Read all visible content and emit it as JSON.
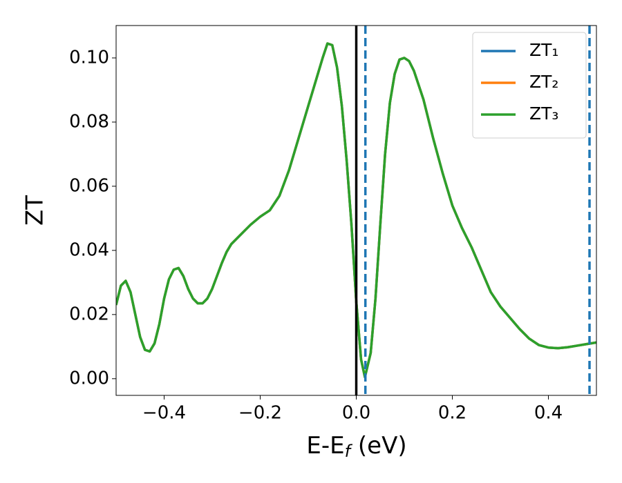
{
  "chart_data": {
    "type": "line",
    "xlabel": [
      "E-E",
      "f",
      " (eV)"
    ],
    "ylabel": "ZT",
    "xlim": [
      -0.5,
      0.5
    ],
    "ylim": [
      -0.0052,
      0.1101
    ],
    "xticks": [
      {
        "value": -0.4,
        "label": "−0.4"
      },
      {
        "value": -0.2,
        "label": "−0.2"
      },
      {
        "value": 0,
        "label": "0.0"
      },
      0.2,
      0.4
    ],
    "yticks": [
      {
        "value": 0,
        "label": "0.00"
      },
      0.02,
      0.04,
      0.06,
      0.08,
      {
        "value": 0.1,
        "label": "0.10"
      }
    ],
    "grid": false,
    "legend": "upper right",
    "x": [
      -0.5,
      -0.49,
      -0.48,
      -0.47,
      -0.46,
      -0.45,
      -0.44,
      -0.43,
      -0.42,
      -0.41,
      -0.4,
      -0.39,
      -0.38,
      -0.37,
      -0.36,
      -0.35,
      -0.34,
      -0.33,
      -0.32,
      -0.31,
      -0.3,
      -0.29,
      -0.28,
      -0.27,
      -0.26,
      -0.25,
      -0.24,
      -0.22,
      -0.2,
      -0.18,
      -0.16,
      -0.14,
      -0.12,
      -0.1,
      -0.08,
      -0.07,
      -0.06,
      -0.05,
      -0.04,
      -0.03,
      -0.02,
      -0.01,
      0,
      0.01,
      0.018,
      0.03,
      0.04,
      0.05,
      0.06,
      0.07,
      0.08,
      0.09,
      0.1,
      0.11,
      0.12,
      0.14,
      0.16,
      0.18,
      0.2,
      0.22,
      0.24,
      0.26,
      0.28,
      0.3,
      0.32,
      0.34,
      0.36,
      0.38,
      0.4,
      0.42,
      0.44,
      0.46,
      0.48,
      0.5
    ],
    "series": [
      {
        "name": "ZT₁",
        "color": "#1f77b4",
        "values": [
          0.023,
          0.029,
          0.0305,
          0.027,
          0.02,
          0.013,
          0.009,
          0.0085,
          0.011,
          0.017,
          0.025,
          0.031,
          0.034,
          0.0345,
          0.032,
          0.028,
          0.025,
          0.0235,
          0.0235,
          0.025,
          0.028,
          0.032,
          0.036,
          0.0395,
          0.042,
          0.0435,
          0.045,
          0.048,
          0.0505,
          0.0525,
          0.057,
          0.065,
          0.075,
          0.085,
          0.095,
          0.1,
          0.1045,
          0.104,
          0.097,
          0.085,
          0.068,
          0.048,
          0.024,
          0.006,
          0.0005,
          0.008,
          0.025,
          0.048,
          0.07,
          0.086,
          0.095,
          0.0995,
          0.1,
          0.099,
          0.096,
          0.087,
          0.075,
          0.064,
          0.054,
          0.047,
          0.041,
          0.034,
          0.027,
          0.0225,
          0.019,
          0.0155,
          0.0125,
          0.0105,
          0.0097,
          0.0095,
          0.0098,
          0.0103,
          0.0108,
          0.0113
        ]
      },
      {
        "name": "ZT₂",
        "color": "#ff7f0e",
        "values": [
          0.023,
          0.029,
          0.0305,
          0.027,
          0.02,
          0.013,
          0.009,
          0.0085,
          0.011,
          0.017,
          0.025,
          0.031,
          0.034,
          0.0345,
          0.032,
          0.028,
          0.025,
          0.0235,
          0.0235,
          0.025,
          0.028,
          0.032,
          0.036,
          0.0395,
          0.042,
          0.0435,
          0.045,
          0.048,
          0.0505,
          0.0525,
          0.057,
          0.065,
          0.075,
          0.085,
          0.095,
          0.1,
          0.1045,
          0.104,
          0.097,
          0.085,
          0.068,
          0.048,
          0.024,
          0.006,
          0.0005,
          0.008,
          0.025,
          0.048,
          0.07,
          0.086,
          0.095,
          0.0995,
          0.1,
          0.099,
          0.096,
          0.087,
          0.075,
          0.064,
          0.054,
          0.047,
          0.041,
          0.034,
          0.027,
          0.0225,
          0.019,
          0.0155,
          0.0125,
          0.0105,
          0.0097,
          0.0095,
          0.0098,
          0.0103,
          0.0108,
          0.0113
        ]
      },
      {
        "name": "ZT₃",
        "color": "#2ca02c",
        "values": [
          0.023,
          0.029,
          0.0305,
          0.027,
          0.02,
          0.013,
          0.009,
          0.0085,
          0.011,
          0.017,
          0.025,
          0.031,
          0.034,
          0.0345,
          0.032,
          0.028,
          0.025,
          0.0235,
          0.0235,
          0.025,
          0.028,
          0.032,
          0.036,
          0.0395,
          0.042,
          0.0435,
          0.045,
          0.048,
          0.0505,
          0.0525,
          0.057,
          0.065,
          0.075,
          0.085,
          0.095,
          0.1,
          0.1045,
          0.104,
          0.097,
          0.085,
          0.068,
          0.048,
          0.024,
          0.006,
          0.0005,
          0.008,
          0.025,
          0.048,
          0.07,
          0.086,
          0.095,
          0.0995,
          0.1,
          0.099,
          0.096,
          0.087,
          0.075,
          0.064,
          0.054,
          0.047,
          0.041,
          0.034,
          0.027,
          0.0225,
          0.019,
          0.0155,
          0.0125,
          0.0105,
          0.0097,
          0.0095,
          0.0098,
          0.0103,
          0.0108,
          0.0113
        ]
      }
    ],
    "vlines": [
      {
        "x": 0,
        "color": "#000000",
        "dashed": false
      },
      {
        "x": 0.019,
        "color": "#1f77b4",
        "dashed": true
      },
      {
        "x": 0.4856,
        "color": "#1f77b4",
        "dashed": true
      }
    ]
  }
}
